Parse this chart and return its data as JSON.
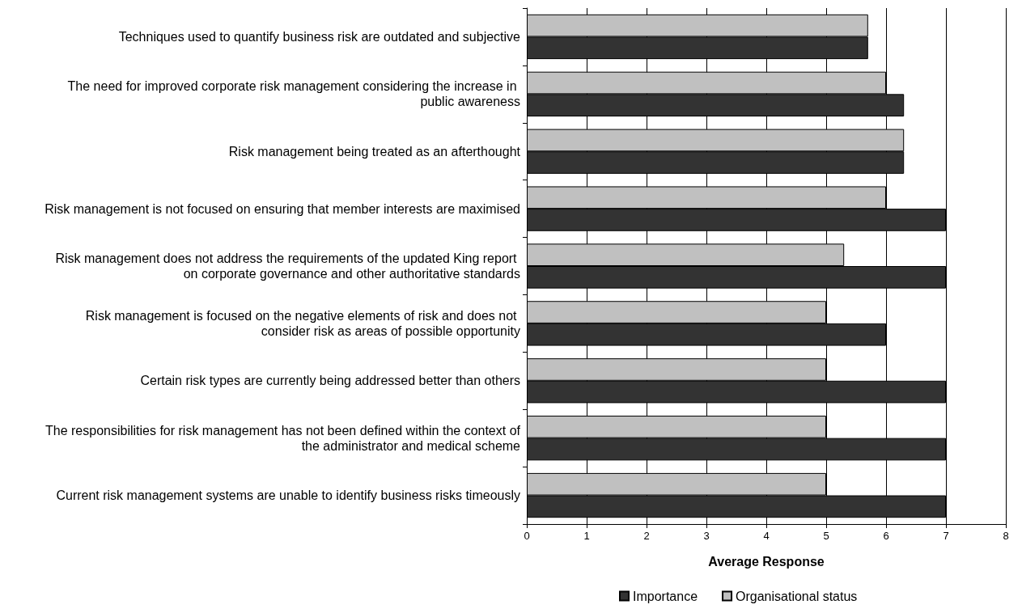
{
  "chart_data": {
    "type": "bar",
    "orientation": "horizontal",
    "xlabel": "Average Response",
    "categories": [
      "Techniques used to quantify business risk are outdated and subjective",
      "The need for improved corporate risk management considering the increase in public awareness",
      "Risk management being treated as an afterthought",
      "Risk management is not focused on ensuring that member interests are maximised",
      "Risk management does not address the requirements of the updated King report on corporate governance and other authoritative standards",
      "Risk management is focused on the negative elements of risk and does not consider risk as areas of possible opportunity",
      "Certain risk types are currently being addressed better than others",
      "The responsibilities for risk management has not been defined within the context of the administrator and medical scheme",
      "Current risk management systems are unable to identify business risks timeously"
    ],
    "series": [
      {
        "name": "Importance",
        "color": "#333333",
        "values": [
          5.7,
          6.3,
          6.3,
          7,
          7,
          6,
          7,
          7,
          7
        ]
      },
      {
        "name": "Organisational status",
        "color": "#c0c0c0",
        "values": [
          5.7,
          6,
          6.3,
          6,
          5.3,
          5,
          5,
          5,
          5
        ]
      }
    ],
    "xlim": [
      0,
      8
    ],
    "xticks": [
      0,
      1,
      2,
      3,
      4,
      5,
      6,
      7,
      8
    ],
    "grid": "x",
    "legend": "bottom"
  }
}
